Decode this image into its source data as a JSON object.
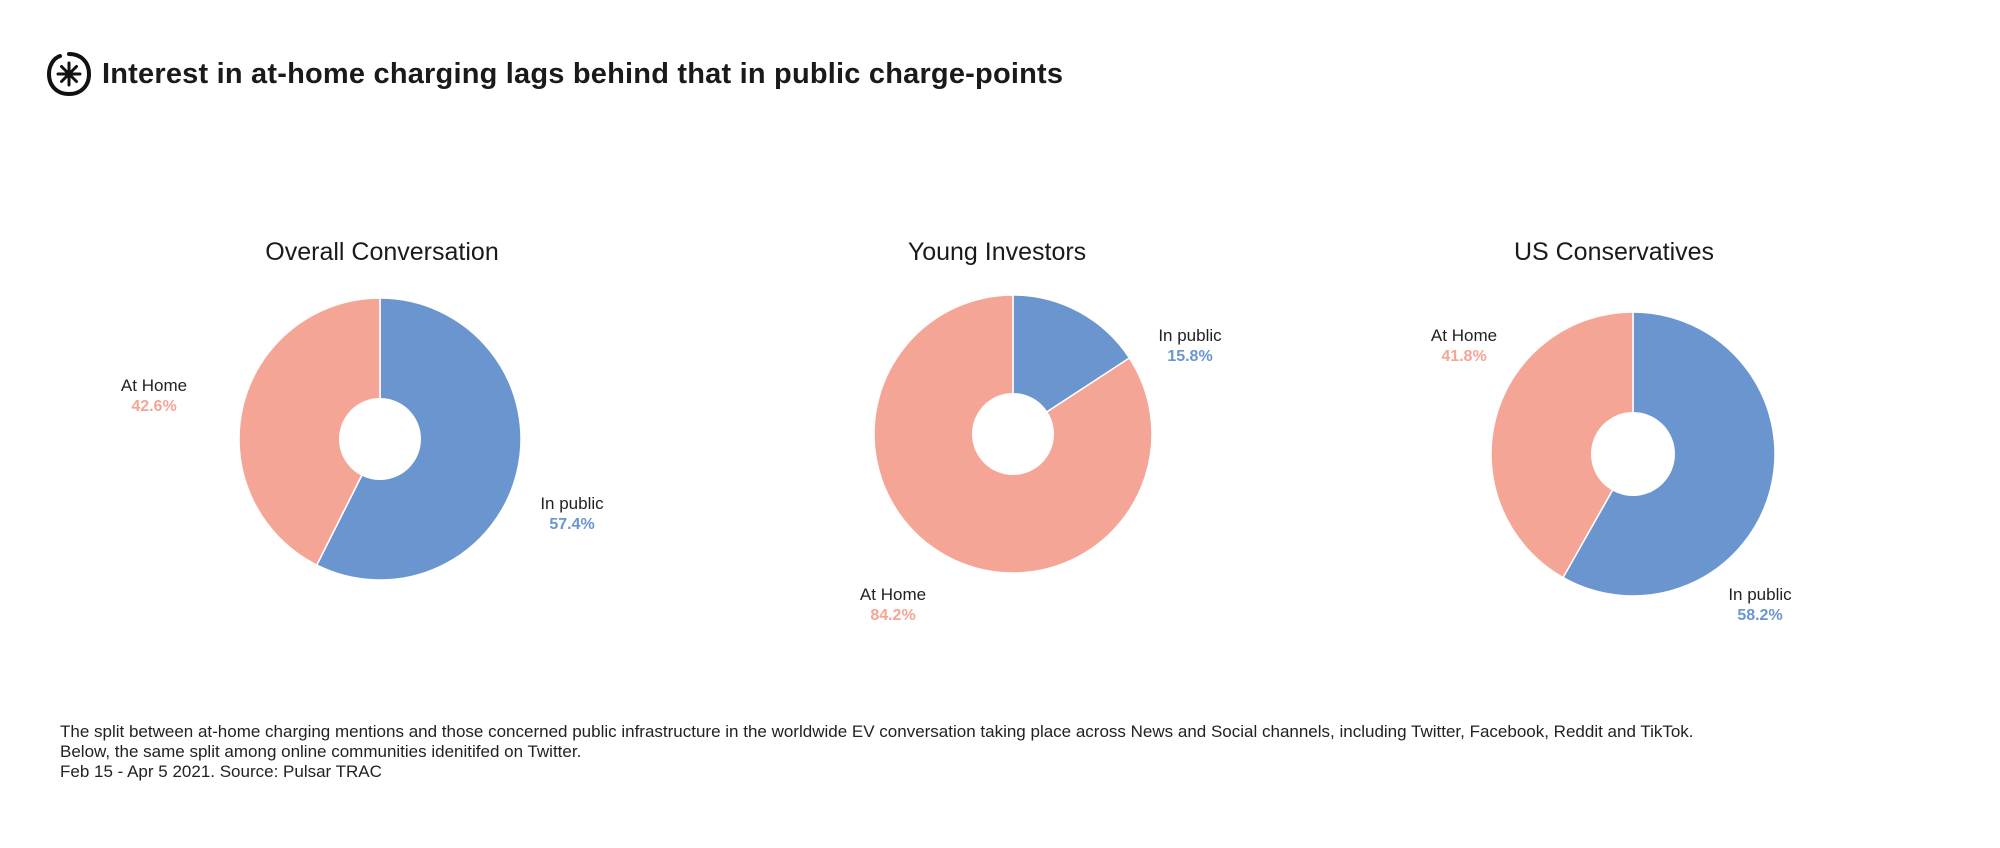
{
  "header": {
    "logo_icon": "starburst-circle-icon",
    "title": "Interest in at-home charging lags behind that in public charge-points"
  },
  "colors": {
    "in_public": "#6b95cf",
    "at_home": "#f4a596",
    "hole": "#ffffff",
    "text": "#1a1a1a"
  },
  "chart_data": [
    {
      "type": "pie",
      "title": "Overall Conversation",
      "slices": [
        {
          "label": "In public",
          "value": 57.4,
          "display": "57.4%"
        },
        {
          "label": "At Home",
          "value": 42.6,
          "display": "42.6%"
        }
      ]
    },
    {
      "type": "pie",
      "title": "Young Investors",
      "slices": [
        {
          "label": "In public",
          "value": 15.8,
          "display": "15.8%"
        },
        {
          "label": "At Home",
          "value": 84.2,
          "display": "84.2%"
        }
      ]
    },
    {
      "type": "pie",
      "title": "US Conservatives",
      "slices": [
        {
          "label": "In public",
          "value": 58.2,
          "display": "58.2%"
        },
        {
          "label": "At Home",
          "value": 41.8,
          "display": "41.8%"
        }
      ]
    }
  ],
  "footer": {
    "line1": "The split between at-home charging mentions and those concerned public infrastructure in the worldwide EV conversation taking place across News and Social channels, including Twitter, Facebook, Reddit and TikTok.",
    "line2": "Below, the same split among online communities idenitifed on Twitter.",
    "line3": "Feb 15 - Apr 5 2021. Source: Pulsar TRAC"
  }
}
